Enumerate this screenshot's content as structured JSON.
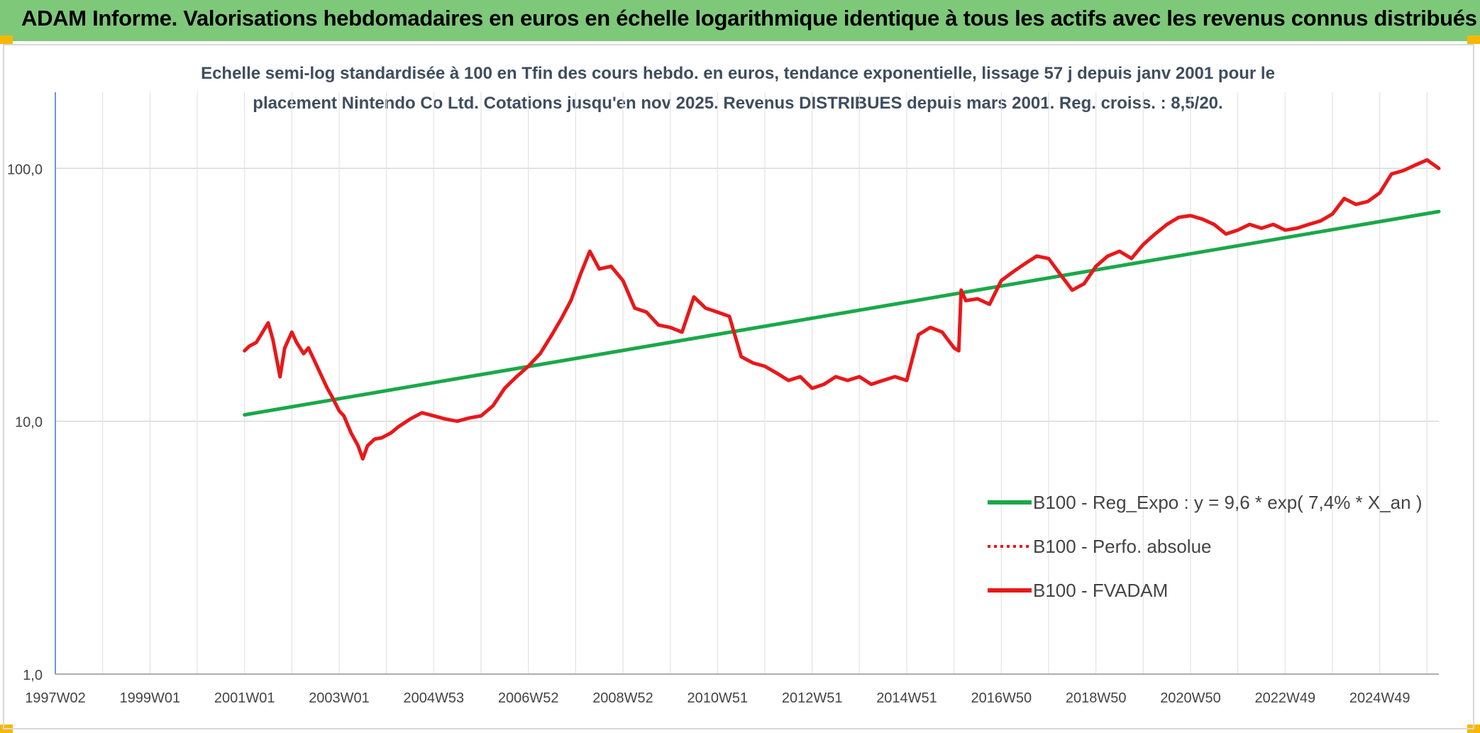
{
  "banner": {
    "title": "ADAM Informe. Valorisations hebdomadaires en euros en échelle logarithmique identique à tous les actifs avec les revenus connus distribués",
    "bg_color": "#7ec87a"
  },
  "chart_data": {
    "type": "line",
    "subtitle_line1": "Echelle semi-log standardisée à 100 en Tfin des cours hebdo. en euros, tendance exponentielle, lissage 57 j depuis janv 2001 pour le",
    "subtitle_line2": "placement Nintendo Co Ltd. Cotations jusqu'en nov 2025. Revenus DISTRIBUES depuis mars 2001. Reg. croiss. : 8,5/20.",
    "y_scale": "log",
    "ylim": [
      1,
      200
    ],
    "y_ticks": [
      {
        "value": 1,
        "label": "1,0"
      },
      {
        "value": 10,
        "label": "10,0"
      },
      {
        "value": 100,
        "label": "100,0"
      }
    ],
    "x_range": [
      1997.0,
      2026.25
    ],
    "x_ticks": [
      {
        "value": 1997.0,
        "label": "1997W02"
      },
      {
        "value": 1999.0,
        "label": "1999W01"
      },
      {
        "value": 2001.0,
        "label": "2001W01"
      },
      {
        "value": 2003.0,
        "label": "2003W01"
      },
      {
        "value": 2005.0,
        "label": "2004W53"
      },
      {
        "value": 2007.0,
        "label": "2006W52"
      },
      {
        "value": 2009.0,
        "label": "2008W52"
      },
      {
        "value": 2011.0,
        "label": "2010W51"
      },
      {
        "value": 2013.0,
        "label": "2012W51"
      },
      {
        "value": 2015.0,
        "label": "2014W51"
      },
      {
        "value": 2017.0,
        "label": "2016W50"
      },
      {
        "value": 2019.0,
        "label": "2018W50"
      },
      {
        "value": 2021.0,
        "label": "2020W50"
      },
      {
        "value": 2023.0,
        "label": "2022W49"
      },
      {
        "value": 2025.0,
        "label": "2024W49"
      }
    ],
    "grid": true,
    "legend_position": "right",
    "legend": [
      "B100 - Reg_Expo : y = 9,6 * exp( 7,4% *  X_an )",
      "B100 - Perfo. absolue",
      "B100 - FVADAM"
    ],
    "series": [
      {
        "name": "B100 - Reg_Expo : y = 9,6 * exp( 7,4% *  X_an )",
        "color": "#1aa84a",
        "style": "solid",
        "x": [
          2001.0,
          2026.25
        ],
        "y": [
          10.6,
          67.5
        ]
      },
      {
        "name": "B100 - Perfo. absolue",
        "color": "#e8181a",
        "style": "dotted",
        "x": [],
        "y": []
      },
      {
        "name": "B100 - FVADAM",
        "color": "#e8181a",
        "style": "solid",
        "x": [
          2001.0,
          2001.1,
          2001.25,
          2001.35,
          2001.5,
          2001.6,
          2001.75,
          2001.85,
          2002.0,
          2002.1,
          2002.25,
          2002.35,
          2002.5,
          2002.6,
          2002.75,
          2002.85,
          2003.0,
          2003.1,
          2003.25,
          2003.4,
          2003.5,
          2003.6,
          2003.75,
          2003.9,
          2004.1,
          2004.25,
          2004.5,
          2004.75,
          2005.0,
          2005.25,
          2005.5,
          2005.75,
          2006.0,
          2006.25,
          2006.5,
          2006.75,
          2007.0,
          2007.25,
          2007.5,
          2007.7,
          2007.9,
          2008.1,
          2008.3,
          2008.5,
          2008.75,
          2009.0,
          2009.25,
          2009.5,
          2009.75,
          2010.0,
          2010.25,
          2010.5,
          2010.75,
          2011.0,
          2011.25,
          2011.5,
          2011.75,
          2012.0,
          2012.25,
          2012.5,
          2012.75,
          2013.0,
          2013.25,
          2013.5,
          2013.75,
          2014.0,
          2014.25,
          2014.5,
          2014.75,
          2015.0,
          2015.25,
          2015.5,
          2015.75,
          2016.0,
          2016.1,
          2016.15,
          2016.25,
          2016.5,
          2016.75,
          2017.0,
          2017.25,
          2017.5,
          2017.75,
          2018.0,
          2018.25,
          2018.5,
          2018.75,
          2019.0,
          2019.25,
          2019.5,
          2019.75,
          2020.0,
          2020.25,
          2020.5,
          2020.75,
          2021.0,
          2021.25,
          2021.5,
          2021.75,
          2022.0,
          2022.25,
          2022.5,
          2022.75,
          2023.0,
          2023.25,
          2023.5,
          2023.75,
          2024.0,
          2024.25,
          2024.5,
          2024.75,
          2025.0,
          2025.25,
          2025.5,
          2025.75,
          2026.0,
          2026.25
        ],
        "y": [
          19.0,
          19.8,
          20.5,
          22.0,
          24.5,
          21.0,
          15.0,
          19.5,
          22.5,
          20.5,
          18.5,
          19.5,
          17.0,
          15.5,
          13.5,
          12.5,
          11.0,
          10.5,
          9.0,
          8.0,
          7.1,
          8.0,
          8.5,
          8.6,
          9.0,
          9.5,
          10.2,
          10.8,
          10.5,
          10.2,
          10.0,
          10.3,
          10.5,
          11.5,
          13.5,
          15.0,
          16.5,
          18.5,
          22.0,
          25.5,
          30.0,
          38.0,
          47.0,
          40.0,
          41.0,
          36.0,
          28.0,
          27.0,
          24.0,
          23.5,
          22.5,
          31.0,
          28.0,
          27.0,
          26.0,
          18.0,
          17.0,
          16.5,
          15.5,
          14.5,
          15.0,
          13.5,
          14.0,
          15.0,
          14.5,
          15.0,
          14.0,
          14.5,
          15.0,
          14.5,
          22.0,
          23.5,
          22.5,
          19.5,
          19.0,
          33.0,
          30.0,
          30.5,
          29.0,
          36.0,
          39.0,
          42.0,
          45.0,
          44.0,
          38.0,
          33.0,
          35.0,
          41.0,
          45.0,
          47.0,
          44.0,
          50.0,
          55.0,
          60.0,
          64.0,
          65.0,
          63.0,
          60.0,
          55.0,
          57.0,
          60.0,
          58.0,
          60.0,
          57.0,
          58.0,
          60.0,
          62.0,
          66.0,
          76.0,
          72.0,
          74.0,
          80.0,
          95.0,
          98.0,
          103.0,
          108.0,
          100.0
        ]
      }
    ]
  }
}
